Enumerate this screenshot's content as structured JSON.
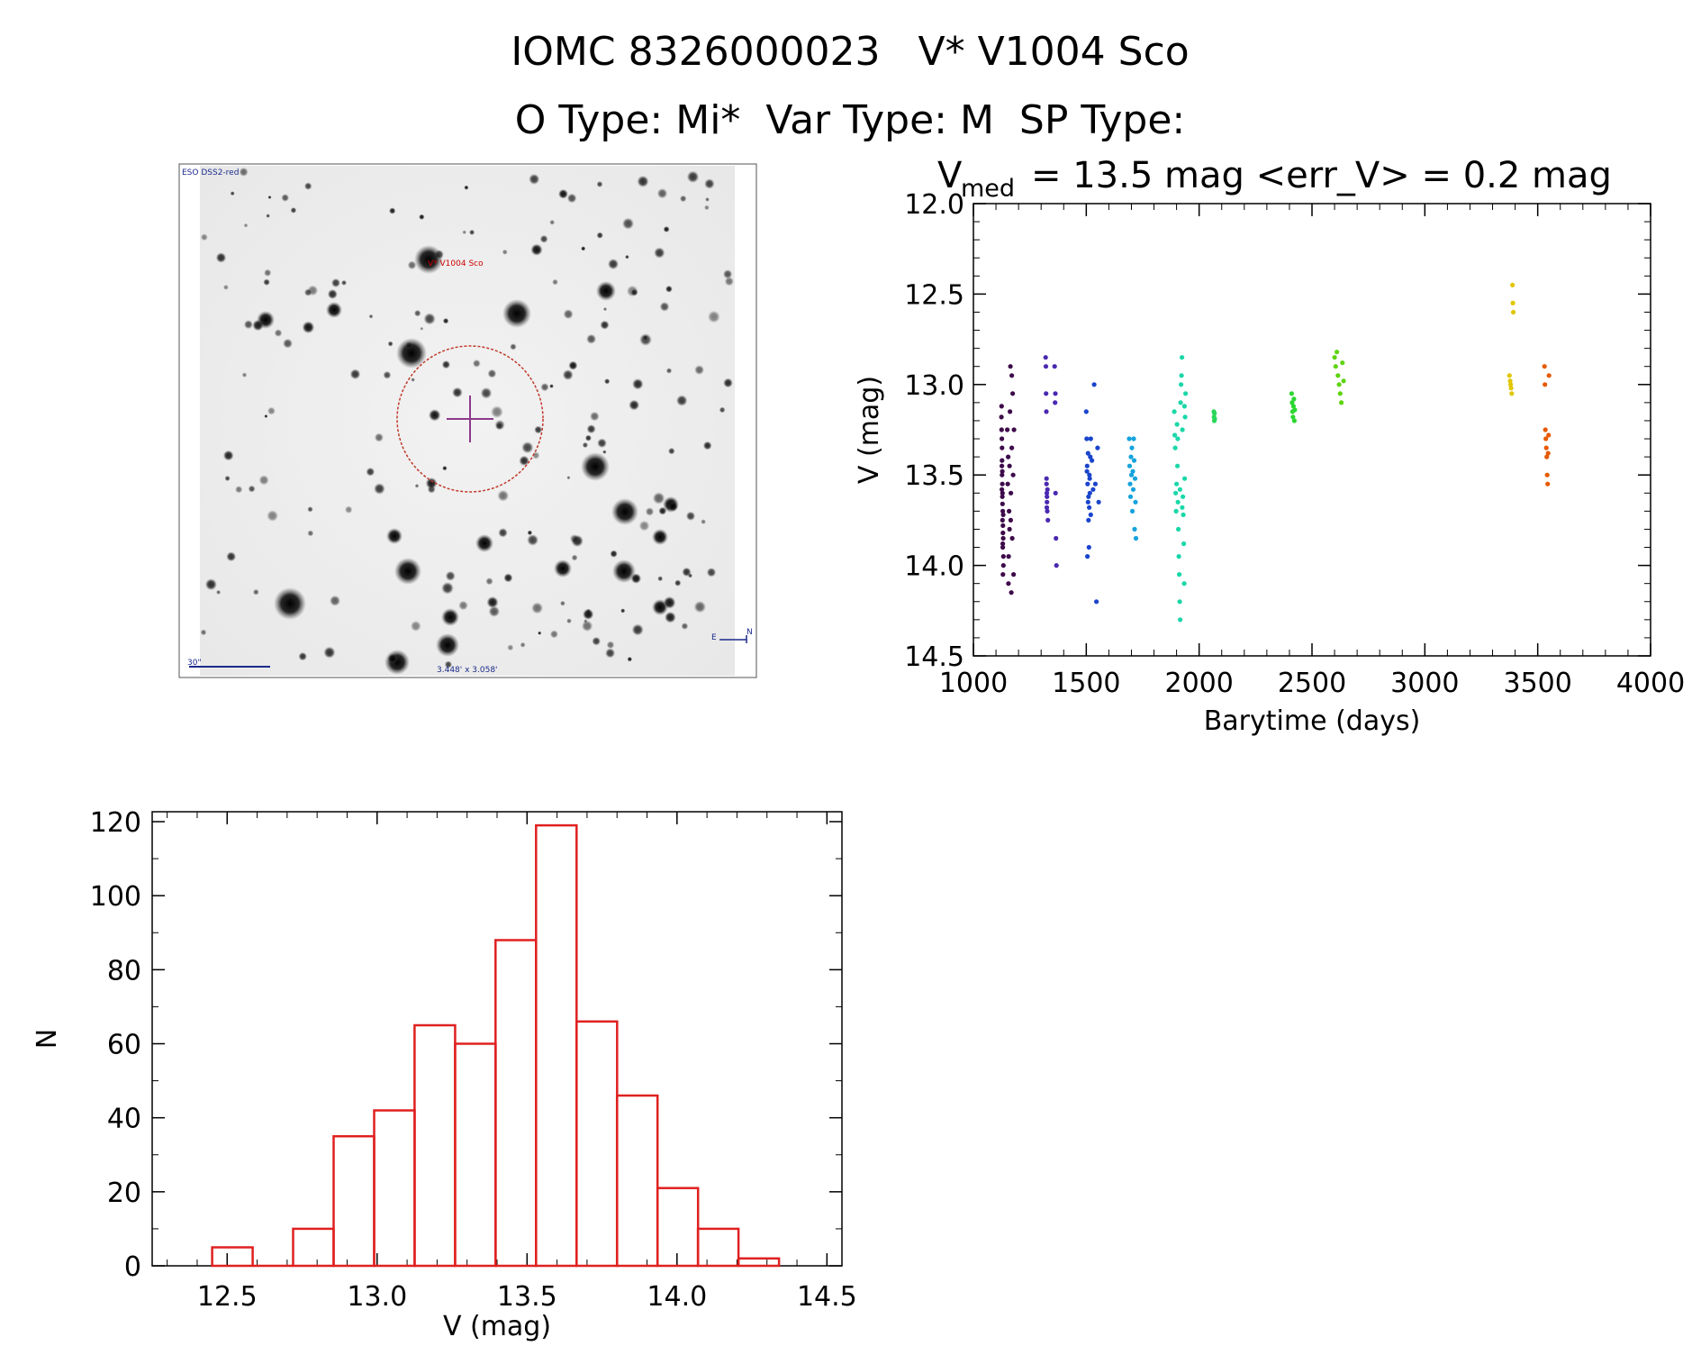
{
  "header": {
    "title_line1": "IOMC 8326000023   V* V1004 Sco",
    "title_line2": "O Type: Mi*  Var Type: M  SP Type:"
  },
  "finder": {
    "survey_label": "ESO DSS2-red",
    "target_label": "V* V1004 Sco",
    "scale_label": "30\"",
    "fov_label": "3.448' x 3.058'",
    "north_label": "N",
    "east_label": "E",
    "colors": {
      "circle": "#c0392b",
      "cross": "#8b3a8b",
      "text_blue": "#1a2a8a",
      "text_red": "#cc0000"
    }
  },
  "chart_data": [
    {
      "type": "scatter",
      "title_prefix": "V",
      "title_subscript": "med",
      "title_rest": "= 13.5 mag <err_V> = 0.2 mag",
      "xlabel": "Barytime (days)",
      "ylabel": "V (mag)",
      "xlim": [
        1000,
        4000
      ],
      "ylim": [
        14.5,
        12.0
      ],
      "y_inverted": true,
      "xticks": [
        "1000",
        "1500",
        "2000",
        "2500",
        "3000",
        "3500",
        "4000"
      ],
      "yticks": [
        "12.0",
        "12.5",
        "13.0",
        "13.5",
        "14.0",
        "14.5"
      ],
      "groups": [
        {
          "name": "1130-1180",
          "color": "#3d0a4a",
          "x_range": [
            1120,
            1185
          ],
          "points": [
            [
              1125,
              13.12
            ],
            [
              1126,
              13.3
            ],
            [
              1127,
              13.5
            ],
            [
              1128,
              13.62
            ],
            [
              1129,
              13.75
            ],
            [
              1130,
              13.9
            ],
            [
              1131,
              14.05
            ],
            [
              1126,
              13.45
            ],
            [
              1128,
              13.55
            ],
            [
              1130,
              13.7
            ],
            [
              1132,
              13.85
            ],
            [
              1127,
              13.35
            ],
            [
              1129,
              13.6
            ],
            [
              1131,
              13.78
            ],
            [
              1133,
              13.95
            ],
            [
              1125,
              13.25
            ],
            [
              1127,
              13.42
            ],
            [
              1129,
              13.66
            ],
            [
              1131,
              13.82
            ],
            [
              1133,
              14.0
            ],
            [
              1124,
              13.18
            ],
            [
              1128,
              13.48
            ],
            [
              1132,
              13.72
            ],
            [
              1126,
              13.58
            ],
            [
              1130,
              13.88
            ],
            [
              1150,
              13.25
            ],
            [
              1152,
              13.55
            ],
            [
              1154,
              13.4
            ],
            [
              1156,
              13.95
            ],
            [
              1158,
              13.7
            ],
            [
              1160,
              13.45
            ],
            [
              1162,
              13.15
            ],
            [
              1164,
              12.9
            ],
            [
              1166,
              13.6
            ],
            [
              1168,
              14.15
            ],
            [
              1170,
              13.35
            ],
            [
              1172,
              13.85
            ],
            [
              1174,
              13.05
            ],
            [
              1176,
              13.5
            ],
            [
              1178,
              14.05
            ],
            [
              1180,
              13.25
            ],
            [
              1165,
              13.75
            ],
            [
              1155,
              14.1
            ],
            [
              1170,
              12.95
            ],
            [
              1160,
              13.8
            ]
          ]
        },
        {
          "name": "1320-1370",
          "color": "#4a28b0",
          "x_range": [
            1310,
            1370
          ],
          "points": [
            [
              1320,
              12.85
            ],
            [
              1321,
              12.9
            ],
            [
              1322,
              13.05
            ],
            [
              1323,
              13.15
            ],
            [
              1324,
              13.55
            ],
            [
              1325,
              13.6
            ],
            [
              1326,
              13.65
            ],
            [
              1327,
              13.7
            ],
            [
              1324,
              13.52
            ],
            [
              1326,
              13.62
            ],
            [
              1328,
              13.58
            ],
            [
              1325,
              13.68
            ],
            [
              1330,
              13.75
            ],
            [
              1360,
              12.9
            ],
            [
              1362,
              13.1
            ],
            [
              1364,
              13.6
            ],
            [
              1366,
              13.85
            ],
            [
              1368,
              14.0
            ],
            [
              1363,
              13.05
            ]
          ]
        },
        {
          "name": "1500-1560",
          "color": "#1a44cc",
          "x_range": [
            1500,
            1560
          ],
          "points": [
            [
              1500,
              13.15
            ],
            [
              1502,
              13.3
            ],
            [
              1504,
              13.45
            ],
            [
              1506,
              13.55
            ],
            [
              1508,
              13.65
            ],
            [
              1510,
              13.75
            ],
            [
              1512,
              13.9
            ],
            [
              1514,
              13.5
            ],
            [
              1516,
              13.6
            ],
            [
              1518,
              13.4
            ],
            [
              1520,
              13.3
            ],
            [
              1505,
              13.95
            ],
            [
              1510,
              13.62
            ],
            [
              1515,
              13.52
            ],
            [
              1520,
              13.72
            ],
            [
              1525,
              13.42
            ],
            [
              1530,
              13.58
            ],
            [
              1535,
              13.0
            ],
            [
              1540,
              13.55
            ],
            [
              1545,
              14.2
            ],
            [
              1550,
              13.35
            ],
            [
              1555,
              13.65
            ],
            [
              1503,
              13.48
            ],
            [
              1508,
              13.38
            ],
            [
              1513,
              13.68
            ]
          ]
        },
        {
          "name": "1690-1720",
          "color": "#15a3dd",
          "x_range": [
            1685,
            1725
          ],
          "points": [
            [
              1690,
              13.3
            ],
            [
              1692,
              13.45
            ],
            [
              1694,
              13.55
            ],
            [
              1696,
              13.62
            ],
            [
              1698,
              13.4
            ],
            [
              1700,
              13.5
            ],
            [
              1702,
              13.35
            ],
            [
              1704,
              13.7
            ],
            [
              1706,
              13.48
            ],
            [
              1708,
              13.58
            ],
            [
              1710,
              13.3
            ],
            [
              1712,
              13.42
            ],
            [
              1714,
              13.8
            ],
            [
              1716,
              13.52
            ],
            [
              1718,
              13.65
            ],
            [
              1720,
              13.85
            ]
          ]
        },
        {
          "name": "1890-1940",
          "color": "#1ad7a8",
          "x_range": [
            1885,
            1945
          ],
          "points": [
            [
              1890,
              13.15
            ],
            [
              1892,
              13.28
            ],
            [
              1894,
              13.35
            ],
            [
              1896,
              13.6
            ],
            [
              1898,
              13.7
            ],
            [
              1900,
              13.55
            ],
            [
              1902,
              13.22
            ],
            [
              1904,
              13.45
            ],
            [
              1906,
              13.65
            ],
            [
              1908,
              13.8
            ],
            [
              1910,
              13.95
            ],
            [
              1912,
              14.05
            ],
            [
              1914,
              14.2
            ],
            [
              1916,
              14.3
            ],
            [
              1918,
              13.1
            ],
            [
              1920,
              13.0
            ],
            [
              1922,
              12.95
            ],
            [
              1924,
              12.85
            ],
            [
              1926,
              13.25
            ],
            [
              1928,
              13.62
            ],
            [
              1930,
              13.72
            ],
            [
              1932,
              13.88
            ],
            [
              1934,
              14.1
            ],
            [
              1936,
              13.52
            ],
            [
              1938,
              13.18
            ],
            [
              1940,
              13.05
            ],
            [
              1915,
              13.58
            ],
            [
              1925,
              13.68
            ],
            [
              1905,
              13.3
            ],
            [
              1935,
              13.12
            ]
          ]
        },
        {
          "name": "2060-2080",
          "color": "#2ad65a",
          "x_range": [
            2060,
            2080
          ],
          "points": [
            [
              2065,
              13.15
            ],
            [
              2066,
              13.18
            ],
            [
              2067,
              13.2
            ],
            [
              2068,
              13.16
            ],
            [
              2069,
              13.19
            ]
          ]
        },
        {
          "name": "2410-2430",
          "color": "#2bd630",
          "x_range": [
            2410,
            2430
          ],
          "points": [
            [
              2410,
              13.05
            ],
            [
              2412,
              13.1
            ],
            [
              2414,
              13.15
            ],
            [
              2416,
              13.18
            ],
            [
              2418,
              13.12
            ],
            [
              2420,
              13.08
            ],
            [
              2422,
              13.2
            ],
            [
              2424,
              13.14
            ]
          ]
        },
        {
          "name": "2600-2640",
          "color": "#5ed40e",
          "x_range": [
            2600,
            2640
          ],
          "points": [
            [
              2600,
              12.85
            ],
            [
              2605,
              12.9
            ],
            [
              2610,
              12.82
            ],
            [
              2615,
              12.95
            ],
            [
              2620,
              13.0
            ],
            [
              2625,
              13.05
            ],
            [
              2630,
              13.1
            ],
            [
              2635,
              12.88
            ],
            [
              2640,
              12.98
            ]
          ]
        },
        {
          "name": "3370-3400",
          "color": "#e0c600",
          "x_range": [
            3370,
            3400
          ],
          "points": [
            [
              3375,
              12.95
            ],
            [
              3378,
              12.98
            ],
            [
              3380,
              13.0
            ],
            [
              3382,
              13.02
            ],
            [
              3385,
              13.05
            ],
            [
              3388,
              12.45
            ],
            [
              3390,
              12.55
            ],
            [
              3392,
              12.6
            ]
          ]
        },
        {
          "name": "3530-3550",
          "color": "#e65a00",
          "x_range": [
            3530,
            3550
          ],
          "points": [
            [
              3530,
              12.9
            ],
            [
              3532,
              13.0
            ],
            [
              3534,
              13.25
            ],
            [
              3536,
              13.3
            ],
            [
              3538,
              13.35
            ],
            [
              3540,
              13.4
            ],
            [
              3542,
              13.5
            ],
            [
              3544,
              13.55
            ],
            [
              3546,
              13.38
            ],
            [
              3548,
              13.28
            ],
            [
              3550,
              12.95
            ]
          ]
        }
      ]
    },
    {
      "type": "bar",
      "subtype": "histogram",
      "xlabel": "V (mag)",
      "ylabel": "N",
      "xlim": [
        12.25,
        14.55
      ],
      "ylim": [
        0,
        120
      ],
      "xticks": [
        "12.5",
        "13.0",
        "13.5",
        "14.0",
        "14.5"
      ],
      "yticks": [
        "0",
        "20",
        "40",
        "60",
        "80",
        "100",
        "120"
      ],
      "bin_edges": [
        12.45,
        12.585,
        12.72,
        12.855,
        12.99,
        13.125,
        13.26,
        13.395,
        13.53,
        13.665,
        13.8,
        13.935,
        14.07,
        14.205,
        14.34
      ],
      "values": [
        5,
        0,
        10,
        35,
        42,
        65,
        60,
        88,
        119,
        66,
        46,
        21,
        10,
        2
      ],
      "color": "#e02020"
    }
  ]
}
